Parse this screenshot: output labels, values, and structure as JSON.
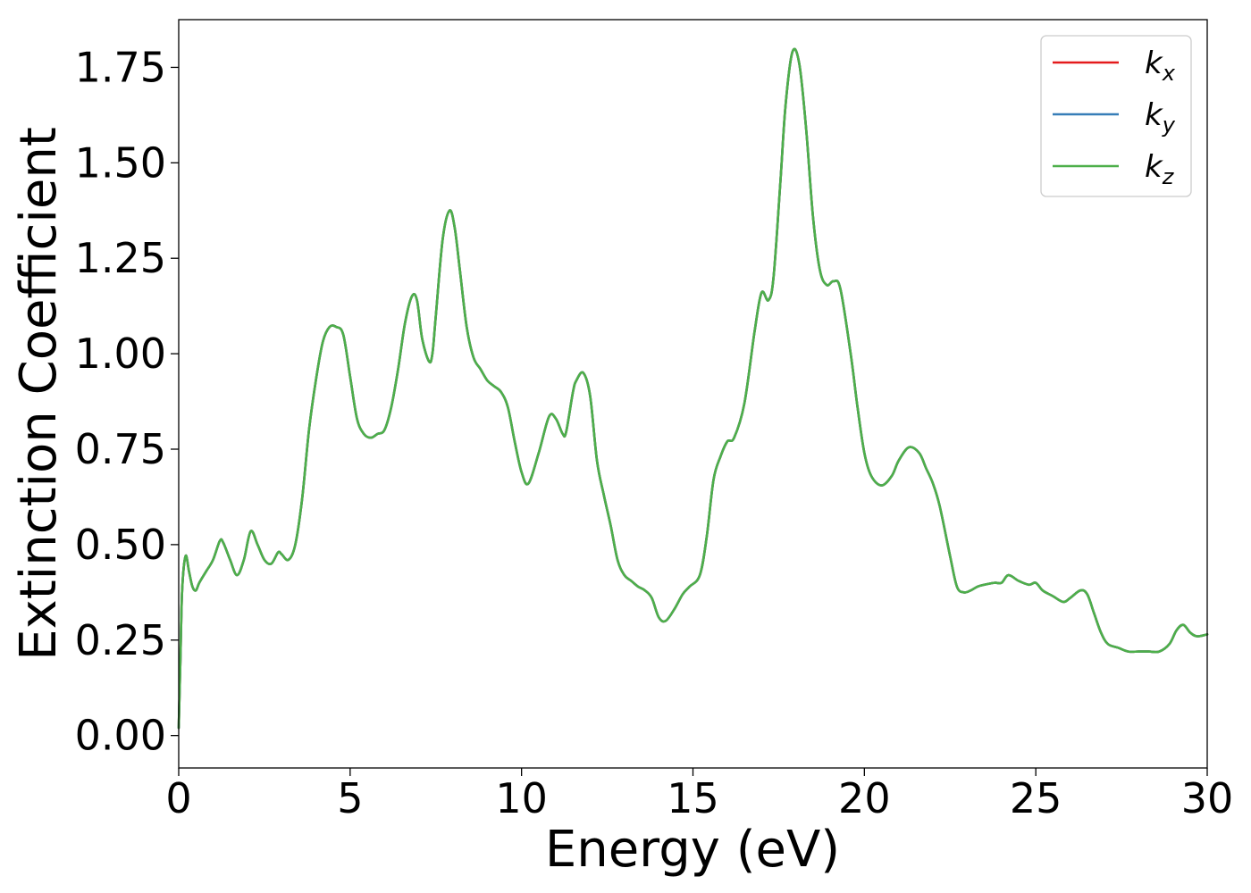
{
  "chart_data": {
    "type": "line",
    "xlabel": "Energy (eV)",
    "ylabel": "Extinction Coefficient",
    "xlim": [
      0,
      30
    ],
    "ylim": [
      -0.085,
      1.875
    ],
    "xticks": [
      0,
      5,
      10,
      15,
      20,
      25,
      30
    ],
    "xtick_labels": [
      "0",
      "5",
      "10",
      "15",
      "20",
      "25",
      "30"
    ],
    "yticks": [
      0,
      0.25,
      0.5,
      0.75,
      1.0,
      1.25,
      1.5,
      1.75
    ],
    "ytick_labels": [
      "0.00",
      "0.25",
      "0.50",
      "0.75",
      "1.00",
      "1.25",
      "1.50",
      "1.75"
    ],
    "grid": false,
    "legend_position": "top-right",
    "series": [
      {
        "name": "k",
        "subscript": "x",
        "color": "#e41a1c"
      },
      {
        "name": "k",
        "subscript": "y",
        "color": "#377eb8"
      },
      {
        "name": "k",
        "subscript": "z",
        "color": "#4daf4a"
      }
    ],
    "x": [
      0.0,
      0.05,
      0.1,
      0.2,
      0.3,
      0.4,
      0.5,
      0.6,
      0.8,
      1.0,
      1.2,
      1.3,
      1.5,
      1.7,
      1.9,
      2.1,
      2.3,
      2.5,
      2.7,
      2.9,
      3.0,
      3.2,
      3.4,
      3.6,
      3.8,
      4.0,
      4.2,
      4.4,
      4.6,
      4.8,
      5.0,
      5.2,
      5.4,
      5.6,
      5.8,
      6.0,
      6.2,
      6.4,
      6.6,
      6.8,
      6.95,
      7.1,
      7.3,
      7.4,
      7.5,
      7.7,
      7.9,
      8.05,
      8.2,
      8.4,
      8.6,
      8.8,
      9.0,
      9.2,
      9.4,
      9.6,
      9.8,
      10.0,
      10.2,
      10.5,
      10.8,
      11.0,
      11.2,
      11.3,
      11.5,
      11.6,
      11.8,
      12.0,
      12.2,
      12.4,
      12.6,
      12.8,
      13.0,
      13.2,
      13.4,
      13.6,
      13.8,
      14.0,
      14.2,
      14.45,
      14.7,
      14.9,
      15.2,
      15.4,
      15.6,
      15.8,
      16.0,
      16.2,
      16.5,
      16.8,
      17.0,
      17.2,
      17.35,
      17.55,
      17.7,
      17.9,
      18.1,
      18.3,
      18.5,
      18.7,
      18.9,
      19.1,
      19.3,
      19.6,
      19.8,
      20.0,
      20.2,
      20.5,
      20.8,
      21.0,
      21.3,
      21.6,
      21.8,
      22.0,
      22.2,
      22.5,
      22.7,
      22.9,
      23.1,
      23.3,
      23.5,
      23.8,
      24.0,
      24.2,
      24.5,
      24.8,
      25.0,
      25.2,
      25.5,
      25.8,
      26.0,
      26.3,
      26.5,
      26.7,
      26.9,
      27.1,
      27.4,
      27.7,
      28.0,
      28.3,
      28.6,
      28.9,
      29.1,
      29.3,
      29.5,
      29.7,
      30.0
    ],
    "y": [
      0.02,
      0.2,
      0.38,
      0.47,
      0.43,
      0.39,
      0.38,
      0.4,
      0.43,
      0.46,
      0.51,
      0.505,
      0.46,
      0.42,
      0.46,
      0.535,
      0.5,
      0.46,
      0.45,
      0.48,
      0.475,
      0.46,
      0.5,
      0.62,
      0.8,
      0.93,
      1.03,
      1.07,
      1.07,
      1.05,
      0.94,
      0.83,
      0.79,
      0.78,
      0.79,
      0.8,
      0.86,
      0.96,
      1.08,
      1.15,
      1.14,
      1.04,
      0.98,
      1.0,
      1.1,
      1.3,
      1.375,
      1.33,
      1.22,
      1.07,
      0.99,
      0.96,
      0.93,
      0.915,
      0.9,
      0.86,
      0.77,
      0.69,
      0.66,
      0.74,
      0.835,
      0.83,
      0.79,
      0.795,
      0.9,
      0.93,
      0.95,
      0.89,
      0.72,
      0.63,
      0.55,
      0.46,
      0.42,
      0.405,
      0.39,
      0.38,
      0.36,
      0.31,
      0.3,
      0.33,
      0.37,
      0.39,
      0.42,
      0.52,
      0.67,
      0.73,
      0.77,
      0.78,
      0.87,
      1.06,
      1.16,
      1.14,
      1.2,
      1.45,
      1.65,
      1.79,
      1.76,
      1.59,
      1.36,
      1.22,
      1.18,
      1.19,
      1.17,
      1.0,
      0.86,
      0.74,
      0.68,
      0.655,
      0.68,
      0.72,
      0.755,
      0.74,
      0.7,
      0.66,
      0.6,
      0.47,
      0.39,
      0.375,
      0.38,
      0.39,
      0.395,
      0.4,
      0.4,
      0.42,
      0.405,
      0.395,
      0.4,
      0.38,
      0.365,
      0.35,
      0.36,
      0.38,
      0.37,
      0.32,
      0.27,
      0.24,
      0.23,
      0.22,
      0.22,
      0.22,
      0.22,
      0.24,
      0.275,
      0.29,
      0.27,
      0.26,
      0.265
    ]
  }
}
